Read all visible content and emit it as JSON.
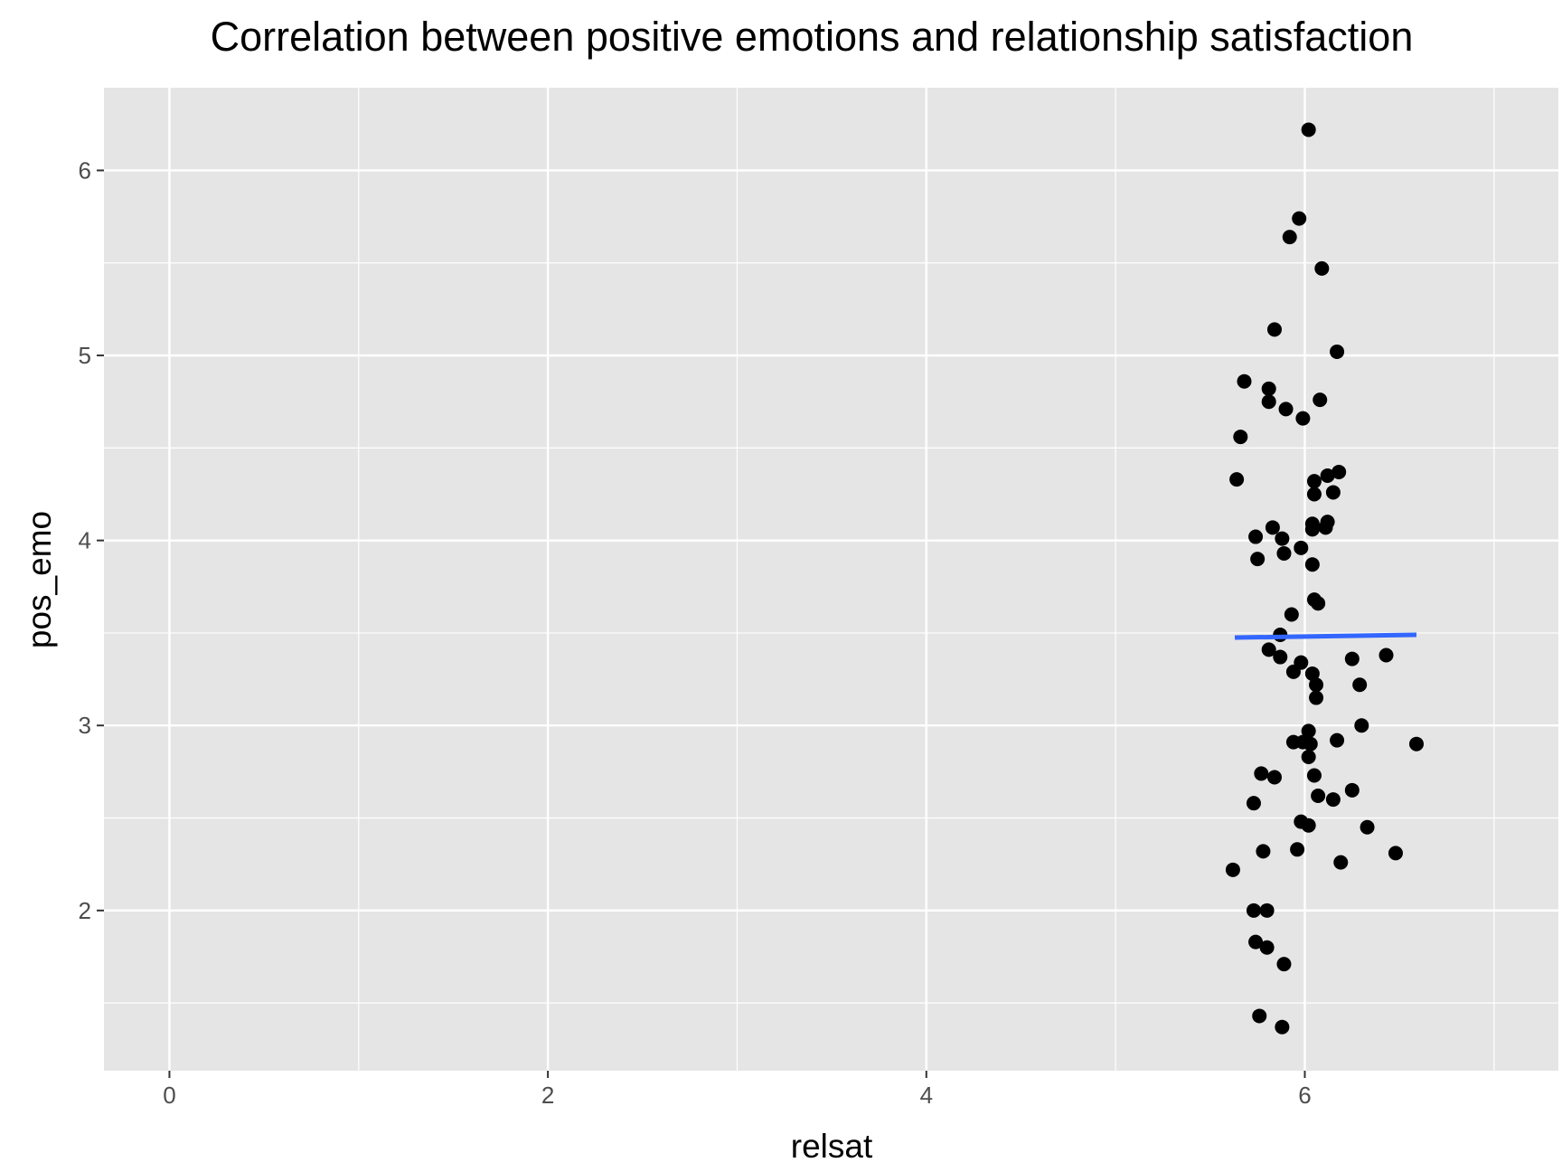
{
  "chart_data": {
    "type": "scatter",
    "title": "Correlation between positive emotions and relationship satisfaction",
    "x_label": "relsat",
    "y_label": "pos_emo",
    "xlim": [
      -0.346,
      7.34
    ],
    "ylim": [
      1.134,
      6.447
    ],
    "xticks": [
      0,
      2,
      4,
      6
    ],
    "yticks": [
      2,
      3,
      4,
      5,
      6
    ],
    "minor_xticks": [
      1,
      3,
      5,
      7
    ],
    "minor_yticks": [
      1.5,
      2.5,
      3.5,
      4.5,
      5.5
    ],
    "grid": true,
    "color": "#000000",
    "x": [
      6.02,
      5.97,
      5.92,
      6.09,
      5.84,
      6.17,
      5.68,
      5.81,
      5.81,
      6.08,
      5.9,
      5.99,
      5.66,
      5.64,
      6.18,
      6.12,
      6.05,
      6.05,
      6.15,
      6.04,
      6.12,
      6.04,
      6.11,
      5.83,
      5.74,
      5.88,
      5.98,
      5.89,
      5.75,
      6.04,
      6.05,
      6.07,
      5.93,
      5.87,
      5.81,
      5.87,
      5.98,
      5.94,
      6.25,
      6.43,
      6.04,
      6.06,
      6.29,
      6.06,
      6.3,
      6.02,
      5.94,
      6.17,
      5.99,
      6.03,
      6.59,
      6.02,
      5.77,
      5.84,
      6.05,
      6.25,
      6.07,
      6.15,
      5.73,
      5.98,
      6.02,
      6.33,
      5.78,
      5.96,
      6.48,
      6.19,
      5.62,
      5.73,
      5.8,
      5.74,
      5.8,
      5.89,
      5.76,
      5.88
    ],
    "y": [
      6.22,
      5.74,
      5.64,
      5.47,
      5.14,
      5.02,
      4.86,
      4.82,
      4.75,
      4.76,
      4.71,
      4.66,
      4.56,
      4.33,
      4.37,
      4.35,
      4.32,
      4.25,
      4.26,
      4.09,
      4.1,
      4.06,
      4.07,
      4.07,
      4.02,
      4.01,
      3.96,
      3.93,
      3.9,
      3.87,
      3.68,
      3.66,
      3.6,
      3.49,
      3.41,
      3.37,
      3.34,
      3.29,
      3.36,
      3.38,
      3.28,
      3.22,
      3.22,
      3.15,
      3.0,
      2.97,
      2.91,
      2.92,
      2.91,
      2.9,
      2.9,
      2.83,
      2.74,
      2.72,
      2.73,
      2.65,
      2.62,
      2.6,
      2.58,
      2.48,
      2.46,
      2.45,
      2.32,
      2.33,
      2.31,
      2.26,
      2.22,
      2.0,
      2.0,
      1.83,
      1.8,
      1.71,
      1.43,
      1.37
    ],
    "fit": {
      "color": "#3366ff",
      "x": [
        5.63,
        6.59
      ],
      "y": [
        3.475,
        3.49
      ]
    }
  }
}
